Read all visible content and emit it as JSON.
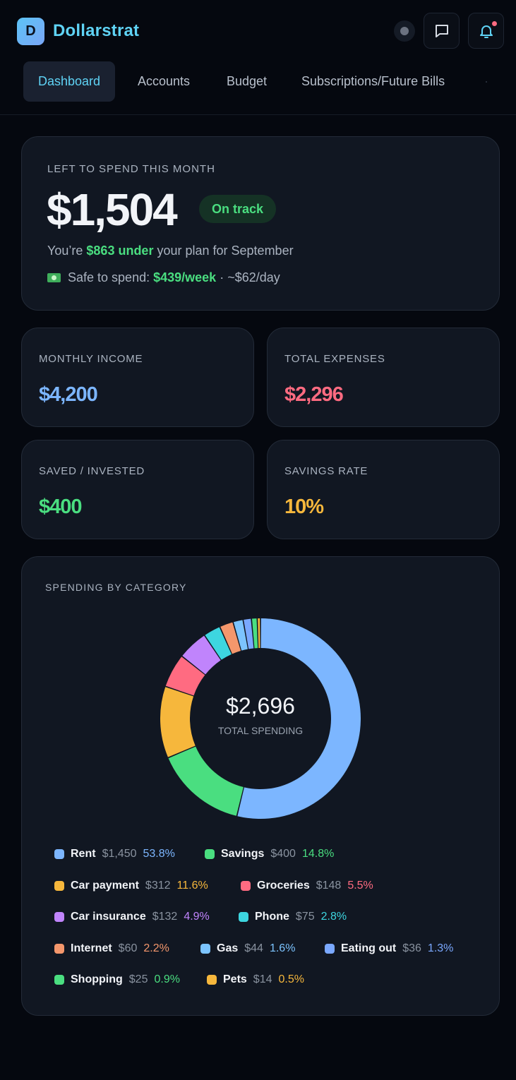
{
  "header": {
    "logo_letter": "D",
    "app_name": "Dollarstrat",
    "icons": {
      "status": "status-dot-icon",
      "chat": "chat-icon",
      "bell": "bell-icon"
    }
  },
  "tabs": [
    {
      "label": "Dashboard",
      "active": true
    },
    {
      "label": "Accounts"
    },
    {
      "label": "Budget"
    },
    {
      "label": "Subscriptions/Future Bills"
    }
  ],
  "summary": {
    "label": "LEFT TO SPEND THIS MONTH",
    "amount": "$1,504",
    "badge": "On track",
    "line1_prefix": "You’re",
    "line1_highlight": "$863 under",
    "line1_suffix": "your plan for September",
    "line2_prefix": "Safe to spend:",
    "line2_highlight": "$439/week",
    "line2_suffix": "· ~$62/day"
  },
  "stats": [
    {
      "label": "MONTHLY INCOME",
      "value": "$4,200",
      "color": "#7cb6ff"
    },
    {
      "label": "TOTAL EXPENSES",
      "value": "$2,296",
      "color": "#ff6b81"
    },
    {
      "label": "SAVED / INVESTED",
      "value": "$400",
      "color": "#4ade80"
    },
    {
      "label": "SAVINGS RATE",
      "value": "10%",
      "color": "#f6b73c"
    }
  ],
  "spending": {
    "title": "SPENDING BY CATEGORY",
    "total": "$2,696",
    "total_label": "TOTAL SPENDING"
  },
  "chart_data": {
    "type": "pie",
    "title": "SPENDING BY CATEGORY",
    "categories": [
      "Rent",
      "Savings",
      "Car payment",
      "Groceries",
      "Car insurance",
      "Phone",
      "Internet",
      "Gas",
      "Eating out",
      "Shopping",
      "Pets"
    ],
    "values": [
      1450,
      400,
      312,
      148,
      132,
      75,
      60,
      44,
      36,
      25,
      14
    ],
    "amount_labels": [
      "$1,450",
      "$400",
      "$312",
      "$148",
      "$132",
      "$75",
      "$60",
      "$44",
      "$36",
      "$25",
      "$14"
    ],
    "percent_labels": [
      "53.8%",
      "14.8%",
      "11.6%",
      "5.5%",
      "4.9%",
      "2.8%",
      "2.2%",
      "1.6%",
      "1.3%",
      "0.9%",
      "0.5%"
    ],
    "colors": [
      "#7cb6ff",
      "#4ade80",
      "#f6b73c",
      "#ff6b81",
      "#c084fc",
      "#3dd6e0",
      "#f4976c",
      "#7cc4ff",
      "#7aa8ff",
      "#4ade80",
      "#f6b73c"
    ],
    "percent_colors": [
      "#7cb6ff",
      "#4ade80",
      "#f6b73c",
      "#ff6b81",
      "#c084fc",
      "#3dd6e0",
      "#f4976c",
      "#7cc4ff",
      "#7aa8ff",
      "#4ade80",
      "#f6b73c"
    ],
    "legend": "bottom"
  }
}
